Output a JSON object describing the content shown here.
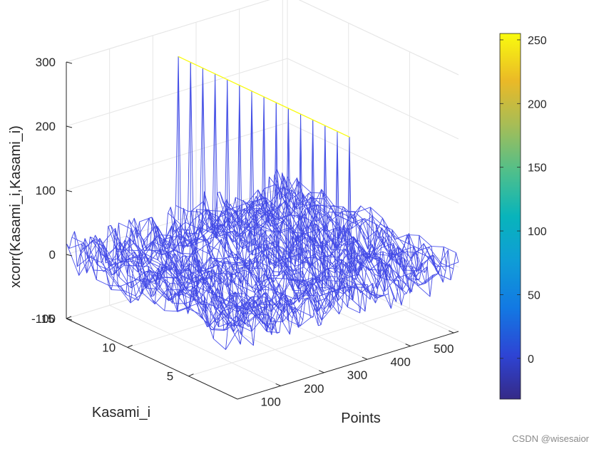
{
  "chart_data": {
    "type": "mesh3d",
    "xlabel": "Points",
    "ylabel": "Kasami_i",
    "zlabel": "xcorr(Kasami_i,Kasami_i)",
    "xlim": [
      0,
      511
    ],
    "ylim": [
      1,
      15
    ],
    "zlim": [
      -100,
      300
    ],
    "x_ticks": [
      100,
      200,
      300,
      400,
      500
    ],
    "x_tick_labels": [
      "100",
      "200",
      "300",
      "400",
      "500"
    ],
    "y_ticks": [
      5,
      10,
      15
    ],
    "y_tick_labels": [
      "5",
      "10",
      "15"
    ],
    "z_ticks": [
      -100,
      0,
      100,
      200,
      300
    ],
    "z_tick_labels": [
      "-100",
      "0",
      "100",
      "200",
      "300"
    ],
    "grid": true,
    "colormap": "parula",
    "colorbar": {
      "location": "right",
      "range": [
        -32,
        255
      ],
      "ticks": [
        0,
        50,
        100,
        150,
        200,
        250
      ],
      "tick_labels": [
        "0",
        "50",
        "100",
        "150",
        "200",
        "250"
      ]
    },
    "series": [
      {
        "description_values": {
          "rows": 15,
          "columns": 511,
          "peak_index": 256,
          "peak_value": 255,
          "off_peak_min": -32,
          "off_peak_max": 32
        }
      }
    ]
  },
  "footer": {
    "watermark": "CSDN @wisesaior"
  },
  "colors": {
    "mesh_low": "#3d26a8",
    "mesh_mid": "#4a5cf0",
    "peak_top": "#f9fb0e",
    "grid": "#e6e6e6",
    "axis": "#262626",
    "background": "#ffffff"
  }
}
